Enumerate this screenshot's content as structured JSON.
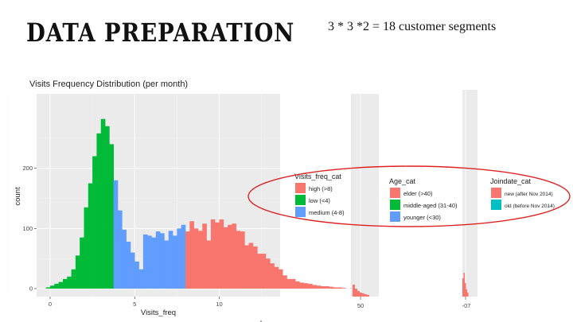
{
  "slide": {
    "title": "DATA PREPARATION",
    "subtitle": "3 * 3 *2 = 18 customer segments"
  },
  "colors": {
    "high": "#F8766D",
    "low": "#00BA38",
    "medium": "#619CFF",
    "old": "#00BFC4",
    "panel": "#EBEBEB",
    "ellipse": "#DD2222"
  },
  "chart_data": {
    "type": "bar",
    "title": "Visits Frequency Distribution (per month)",
    "xlabel": "Visits_freq",
    "ylabel": "count",
    "xlim": [
      -0.8,
      13.6
    ],
    "ylim": [
      0,
      300
    ],
    "xticks": [
      "0",
      "5",
      "10"
    ],
    "yticks": [
      "0",
      "100",
      "200"
    ],
    "grid": true,
    "bin_width": 0.25,
    "bin_start": -0.25,
    "values": [
      2,
      5,
      8,
      11,
      16,
      20,
      32,
      55,
      85,
      135,
      175,
      220,
      258,
      282,
      270,
      240,
      180,
      130,
      98,
      78,
      60,
      45,
      32,
      90,
      88,
      85,
      95,
      92,
      80,
      96,
      88,
      100,
      106,
      95,
      112,
      100,
      96,
      108,
      80,
      115,
      110,
      115,
      102,
      106,
      108,
      96,
      95,
      72,
      76,
      70,
      58,
      58,
      50,
      42,
      36,
      32,
      22,
      16,
      16,
      12,
      10,
      9,
      8,
      6,
      5,
      4,
      4,
      3,
      2,
      2,
      1,
      0,
      1,
      0,
      2
    ],
    "series": [
      {
        "name": "high (>8)",
        "color": "#F8766D"
      },
      {
        "name": "low (<4)",
        "color": "#00BA38"
      },
      {
        "name": "medium (4-8)",
        "color": "#619CFF"
      }
    ]
  },
  "legends": [
    {
      "title": "Visits_freq_cat",
      "items": [
        "high (>8)",
        "low (<4)",
        "medium (4-8)"
      ]
    },
    {
      "title": "Age_cat",
      "items": [
        "elder (>40)",
        "middle-aged (31-40)",
        "younger (<30)"
      ]
    },
    {
      "title": "Joindate_cat",
      "items": [
        "new (after Nov 2014)",
        "old (before Nov 2014)"
      ]
    }
  ],
  "strip_plots": [
    {
      "tick": "50"
    },
    {
      "tick": "-07"
    }
  ]
}
